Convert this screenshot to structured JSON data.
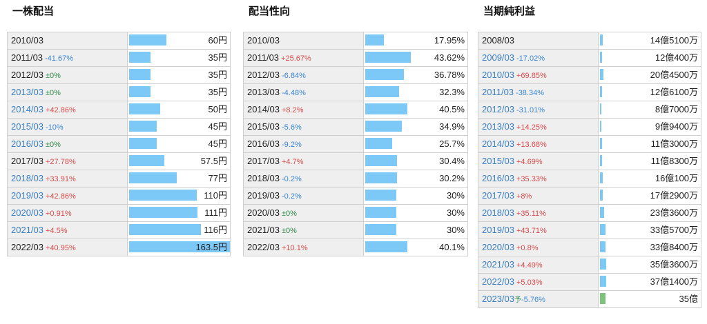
{
  "panels": [
    {
      "title": "一株配当",
      "rows": [
        {
          "year": "2010/03",
          "change": "",
          "value": "60円",
          "bar": 60,
          "link": false
        },
        {
          "year": "2011/03",
          "change": "-41.67%",
          "value": "35円",
          "bar": 35,
          "link": false
        },
        {
          "year": "2012/03",
          "change": "±0%",
          "value": "35円",
          "bar": 35,
          "link": false
        },
        {
          "year": "2013/03",
          "change": "±0%",
          "value": "35円",
          "bar": 35,
          "link": true
        },
        {
          "year": "2014/03",
          "change": "+42.86%",
          "value": "50円",
          "bar": 50,
          "link": true
        },
        {
          "year": "2015/03",
          "change": "-10%",
          "value": "45円",
          "bar": 45,
          "link": true
        },
        {
          "year": "2016/03",
          "change": "±0%",
          "value": "45円",
          "bar": 45,
          "link": true
        },
        {
          "year": "2017/03",
          "change": "+27.78%",
          "value": "57.5円",
          "bar": 57.5,
          "link": false
        },
        {
          "year": "2018/03",
          "change": "+33.91%",
          "value": "77円",
          "bar": 77,
          "link": true
        },
        {
          "year": "2019/03",
          "change": "+42.86%",
          "value": "110円",
          "bar": 110,
          "link": true
        },
        {
          "year": "2020/03",
          "change": "+0.91%",
          "value": "111円",
          "bar": 111,
          "link": true
        },
        {
          "year": "2021/03",
          "change": "+4.5%",
          "value": "116円",
          "bar": 116,
          "link": true
        },
        {
          "year": "2022/03",
          "change": "+40.95%",
          "value": "163.5円",
          "bar": 163.5,
          "link": false
        }
      ]
    },
    {
      "title": "配当性向",
      "rows": [
        {
          "year": "2010/03",
          "change": "",
          "value": "17.95%",
          "bar": 17.95,
          "link": false
        },
        {
          "year": "2011/03",
          "change": "+25.67%",
          "value": "43.62%",
          "bar": 43.62,
          "link": false
        },
        {
          "year": "2012/03",
          "change": "-6.84%",
          "value": "36.78%",
          "bar": 36.78,
          "link": false
        },
        {
          "year": "2013/03",
          "change": "-4.48%",
          "value": "32.3%",
          "bar": 32.3,
          "link": false
        },
        {
          "year": "2014/03",
          "change": "+8.2%",
          "value": "40.5%",
          "bar": 40.5,
          "link": false
        },
        {
          "year": "2015/03",
          "change": "-5.6%",
          "value": "34.9%",
          "bar": 34.9,
          "link": false
        },
        {
          "year": "2016/03",
          "change": "-9.2%",
          "value": "25.7%",
          "bar": 25.7,
          "link": false
        },
        {
          "year": "2017/03",
          "change": "+4.7%",
          "value": "30.4%",
          "bar": 30.4,
          "link": false
        },
        {
          "year": "2018/03",
          "change": "-0.2%",
          "value": "30.2%",
          "bar": 30.2,
          "link": false
        },
        {
          "year": "2019/03",
          "change": "-0.2%",
          "value": "30%",
          "bar": 30,
          "link": false
        },
        {
          "year": "2020/03",
          "change": "±0%",
          "value": "30%",
          "bar": 30,
          "link": false
        },
        {
          "year": "2021/03",
          "change": "±0%",
          "value": "30%",
          "bar": 30,
          "link": false
        },
        {
          "year": "2022/03",
          "change": "+10.1%",
          "value": "40.1%",
          "bar": 40.1,
          "link": false
        }
      ]
    },
    {
      "title": "当期純利益",
      "rows": [
        {
          "year": "2008/03",
          "change": "",
          "value": "14億5100万",
          "bar": 14.51,
          "link": false
        },
        {
          "year": "2009/03",
          "change": "-17.02%",
          "value": "12億400万",
          "bar": 12.04,
          "link": true
        },
        {
          "year": "2010/03",
          "change": "+69.85%",
          "value": "20億4500万",
          "bar": 20.45,
          "link": true
        },
        {
          "year": "2011/03",
          "change": "-38.34%",
          "value": "12億6100万",
          "bar": 12.61,
          "link": true
        },
        {
          "year": "2012/03",
          "change": "-31.01%",
          "value": "8億7000万",
          "bar": 8.7,
          "link": true
        },
        {
          "year": "2013/03",
          "change": "+14.25%",
          "value": "9億9400万",
          "bar": 9.94,
          "link": true
        },
        {
          "year": "2014/03",
          "change": "+13.68%",
          "value": "11億3000万",
          "bar": 11.3,
          "link": true
        },
        {
          "year": "2015/03",
          "change": "+4.69%",
          "value": "11億8300万",
          "bar": 11.83,
          "link": true
        },
        {
          "year": "2016/03",
          "change": "+35.33%",
          "value": "16億100万",
          "bar": 16.01,
          "link": true
        },
        {
          "year": "2017/03",
          "change": "+8%",
          "value": "17億2900万",
          "bar": 17.29,
          "link": true
        },
        {
          "year": "2018/03",
          "change": "+35.11%",
          "value": "23億3600万",
          "bar": 23.36,
          "link": true
        },
        {
          "year": "2019/03",
          "change": "+43.71%",
          "value": "33億5700万",
          "bar": 33.57,
          "link": true
        },
        {
          "year": "2020/03",
          "change": "+0.8%",
          "value": "33億8400万",
          "bar": 33.84,
          "link": true
        },
        {
          "year": "2021/03",
          "change": "+4.49%",
          "value": "35億3600万",
          "bar": 35.36,
          "link": true
        },
        {
          "year": "2022/03",
          "change": "+5.03%",
          "value": "37億1400万",
          "bar": 37.14,
          "link": true
        },
        {
          "year": "2023/03",
          "change": "-5.76%",
          "value": "35億",
          "bar": 35,
          "link": true,
          "forecast": true,
          "forecast_mark": "予"
        }
      ]
    }
  ],
  "colors": {
    "bar": "#7cc8f7",
    "forecast_bar": "#7cc47c",
    "positive": "#d94a4a",
    "negative": "#3a86d6",
    "zero": "#2f8a4a",
    "link": "#3a7fc4"
  }
}
